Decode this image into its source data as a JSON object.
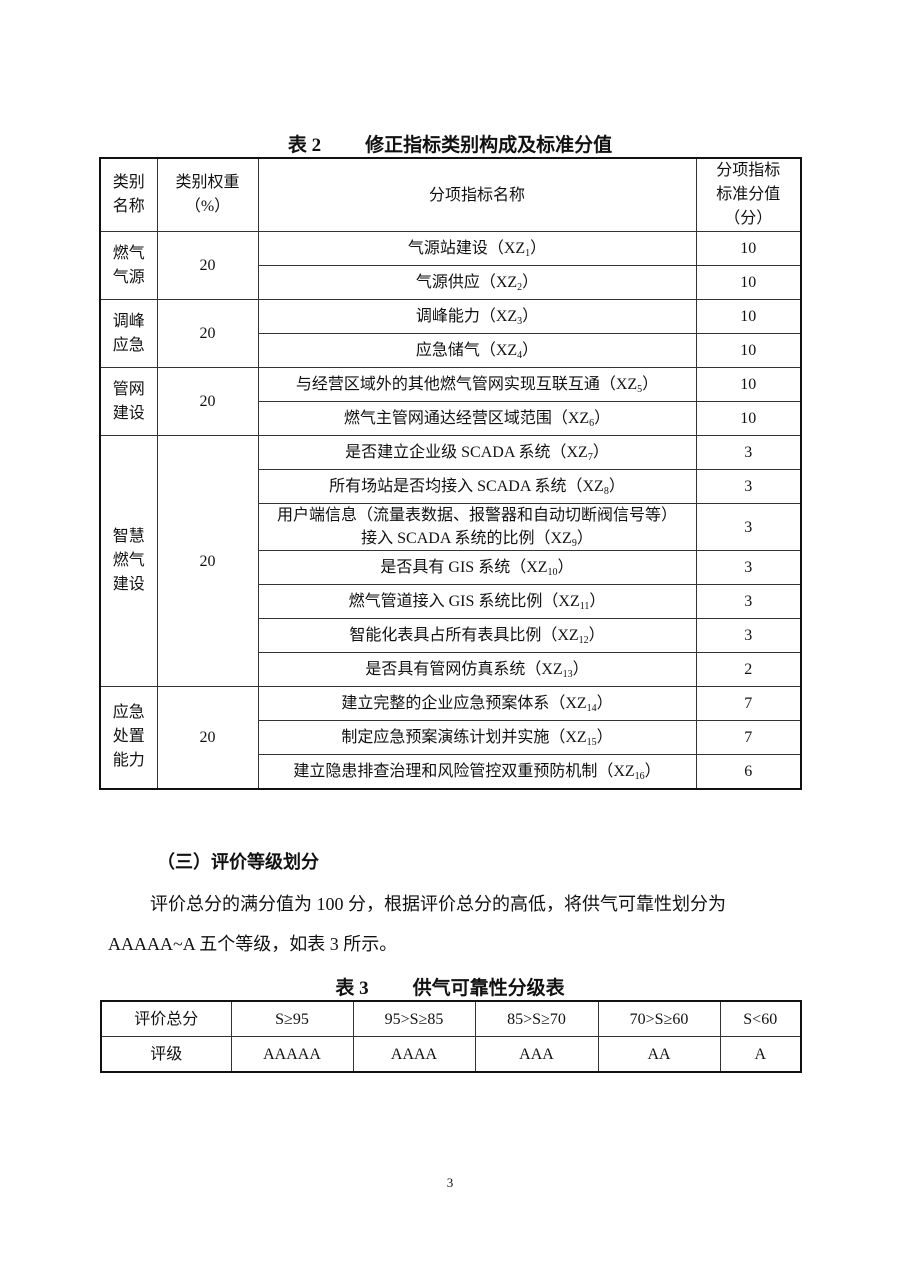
{
  "table2": {
    "caption_label": "表 2",
    "caption_title": "修正指标类别构成及标准分值",
    "headers": [
      "类别名称",
      "类别权重（%）",
      "分项指标名称",
      "分项指标标准分值（分）"
    ],
    "header_lines": {
      "category": [
        "类别",
        "名称"
      ],
      "weight": [
        "类别权重",
        "（%）"
      ],
      "item": "分项指标名称",
      "score": [
        "分项指标",
        "标准分值",
        "（分）"
      ]
    },
    "groups": [
      {
        "category": [
          "燃气",
          "气源"
        ],
        "weight": "20",
        "items": [
          {
            "name": "气源站建设（",
            "code": "XZ",
            "sub": "1",
            "close": "）",
            "score": "10"
          },
          {
            "name": "气源供应（",
            "code": "XZ",
            "sub": "2",
            "close": "）",
            "score": "10"
          }
        ]
      },
      {
        "category": [
          "调峰",
          "应急"
        ],
        "weight": "20",
        "items": [
          {
            "name": "调峰能力（",
            "code": "XZ",
            "sub": "3",
            "close": "）",
            "score": "10"
          },
          {
            "name": "应急储气（",
            "code": "XZ",
            "sub": "4",
            "close": "）",
            "score": "10"
          }
        ]
      },
      {
        "category": [
          "管网",
          "建设"
        ],
        "weight": "20",
        "items": [
          {
            "name": "与经营区域外的其他燃气管网实现互联互通（",
            "code": "XZ",
            "sub": "5",
            "close": "）",
            "score": "10"
          },
          {
            "name": "燃气主管网通达经营区域范围（",
            "code": "XZ",
            "sub": "6",
            "close": "）",
            "score": "10"
          }
        ]
      },
      {
        "category": [
          "智慧",
          "燃气",
          "建设"
        ],
        "weight": "20",
        "items": [
          {
            "name": "是否建立企业级 SCADA 系统（",
            "code": "XZ",
            "sub": "7",
            "close": "）",
            "score": "3"
          },
          {
            "name": "所有场站是否均接入 SCADA 系统（",
            "code": "XZ",
            "sub": "8",
            "close": "）",
            "score": "3"
          },
          {
            "name": "用户端信息（流量表数据、报警器和自动切断阀信号等）接入 SCADA 系统的比例（",
            "code": "XZ",
            "sub": "9",
            "close": "）",
            "score": "3"
          },
          {
            "name": "是否具有 GIS 系统（",
            "code": "XZ",
            "sub": "10",
            "close": "）",
            "score": "3"
          },
          {
            "name": "燃气管道接入 GIS 系统比例（",
            "code": "XZ",
            "sub": "11",
            "close": "）",
            "score": "3"
          },
          {
            "name": "智能化表具占所有表具比例（",
            "code": "XZ",
            "sub": "12",
            "close": "）",
            "score": "3"
          },
          {
            "name": "是否具有管网仿真系统（",
            "code": "XZ",
            "sub": "13",
            "close": "）",
            "score": "2"
          }
        ]
      },
      {
        "category": [
          "应急",
          "处置",
          "能力"
        ],
        "weight": "20",
        "items": [
          {
            "name": "建立完整的企业应急预案体系（",
            "code": "XZ",
            "sub": "14",
            "close": "）",
            "score": "7"
          },
          {
            "name": "制定应急预案演练计划并实施（",
            "code": "XZ",
            "sub": "15",
            "close": "）",
            "score": "7"
          },
          {
            "name": "建立隐患排查治理和风险管控双重预防机制（",
            "code": "XZ",
            "sub": "16",
            "close": "）",
            "score": "6"
          }
        ]
      }
    ]
  },
  "section": {
    "heading": "（三）评价等级划分",
    "paragraph": "评价总分的满分值为 100 分，根据评价总分的高低，将供气可靠性划分为 AAAAA~A 五个等级，如表 3 所示。"
  },
  "table3": {
    "caption_label": "表 3",
    "caption_title": "供气可靠性分级表",
    "row1": [
      "评价总分",
      "S≥95",
      "95>S≥85",
      "85>S≥70",
      "70>S≥60",
      "S<60"
    ],
    "row2": [
      "评级",
      "AAAAA",
      "AAAA",
      "AAA",
      "AA",
      "A"
    ]
  },
  "page_number": "3"
}
